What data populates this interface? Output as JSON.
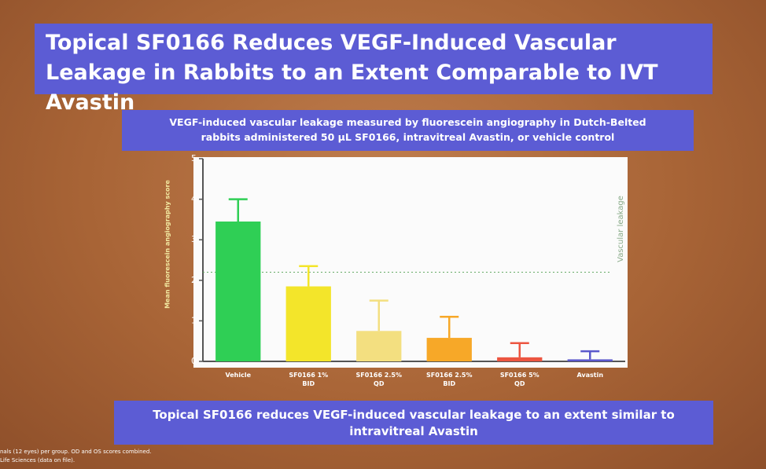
{
  "chart_data": {
    "type": "bar",
    "title": "Topical SF0166 Reduces VEGF-Induced Vascular Leakage in Rabbits to an Extent Comparable to IVT Avastin",
    "subtitle": "VEGF-induced vascular leakage measured by fluorescein angiography in Dutch-Belted rabbits administered 50 µL SF0166, intravitreal Avastin, or vehicle control",
    "y_label": "Mean fluorescein angiography score",
    "categories": [
      "Vehicle",
      "SF0166 1% BID",
      "SF0166 2.5% QD",
      "SF0166 2.5% BID",
      "SF0166 5% QD",
      "Avastin"
    ],
    "values": [
      3.45,
      1.85,
      0.75,
      0.58,
      0.1,
      0.05
    ],
    "errors": [
      0.55,
      0.5,
      0.75,
      0.52,
      0.35,
      0.2
    ],
    "colors": [
      "#2fcf55",
      "#f3e52a",
      "#f3df80",
      "#f7a828",
      "#ec5540",
      "#5a58cc"
    ],
    "ylim": [
      0,
      5
    ],
    "yticks": [
      0,
      1,
      2,
      3,
      4,
      5
    ],
    "threshold": {
      "value": 2.2,
      "label": "Vascular leakage"
    },
    "conclusion": "Topical SF0166 reduces VEGF-induced vascular leakage to an extent similar to intravitreal Avastin",
    "footnotes": [
      "nals (12 eyes) per group. OD and OS scores combined.",
      "Life Sciences (data on file)."
    ]
  }
}
